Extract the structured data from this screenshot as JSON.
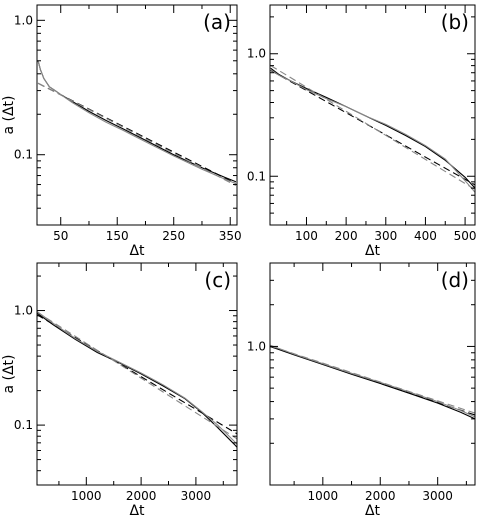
{
  "chart_data": [
    {
      "type": "line",
      "panel_label": "(a)",
      "xlabel": "Δt",
      "ylabel": "a (Δt)",
      "xlim": [
        8,
        362
      ],
      "ylim": [
        0.03,
        1.3
      ],
      "yscale": "log",
      "xticks": [
        50,
        150,
        250,
        350
      ],
      "yticks": [
        0.1,
        1.0
      ],
      "ytick_labels": [
        "0.1",
        "1.0"
      ],
      "grid": false,
      "series": [
        {
          "role": "data",
          "color": "#000000",
          "style": "solid",
          "x": [
            10,
            14,
            20,
            30,
            40,
            50,
            70,
            100,
            130,
            160,
            200,
            250,
            300,
            340,
            360
          ],
          "y": [
            0.5,
            0.43,
            0.37,
            0.32,
            0.3,
            0.28,
            0.25,
            0.21,
            0.18,
            0.156,
            0.128,
            0.1,
            0.08,
            0.068,
            0.063
          ]
        },
        {
          "role": "fit",
          "color": "#000000",
          "style": "dashed",
          "x": [
            10,
            360
          ],
          "y": [
            0.34,
            0.061
          ]
        },
        {
          "role": "data",
          "color": "#888888",
          "style": "solid",
          "x": [
            10,
            14,
            20,
            30,
            40,
            50,
            70,
            100,
            130,
            160,
            200,
            250,
            300,
            340,
            360
          ],
          "y": [
            0.5,
            0.43,
            0.37,
            0.32,
            0.3,
            0.28,
            0.245,
            0.205,
            0.175,
            0.152,
            0.125,
            0.098,
            0.078,
            0.066,
            0.061
          ]
        },
        {
          "role": "fit",
          "color": "#888888",
          "style": "dashed",
          "x": [
            10,
            360
          ],
          "y": [
            0.34,
            0.059
          ]
        }
      ]
    },
    {
      "type": "line",
      "panel_label": "(b)",
      "xlabel": "Δt",
      "ylabel": "",
      "xlim": [
        8,
        525
      ],
      "ylim": [
        0.04,
        2.5
      ],
      "yscale": "log",
      "xticks": [
        100,
        200,
        300,
        400,
        500
      ],
      "yticks": [
        0.1,
        1.0
      ],
      "ytick_labels": [
        "0.1",
        "1.0"
      ],
      "grid": false,
      "series": [
        {
          "role": "data",
          "color": "#000000",
          "style": "solid",
          "x": [
            10,
            30,
            60,
            100,
            150,
            200,
            250,
            300,
            350,
            400,
            450,
            500,
            525
          ],
          "y": [
            0.76,
            0.68,
            0.6,
            0.52,
            0.44,
            0.37,
            0.31,
            0.26,
            0.215,
            0.175,
            0.135,
            0.098,
            0.08
          ]
        },
        {
          "role": "fit",
          "color": "#000000",
          "style": "dashed",
          "x": [
            10,
            525
          ],
          "y": [
            0.73,
            0.085
          ]
        },
        {
          "role": "data",
          "color": "#888888",
          "style": "solid",
          "x": [
            10,
            30,
            60,
            100,
            150,
            200,
            250,
            300,
            350,
            400,
            450,
            500,
            525
          ],
          "y": [
            0.74,
            0.67,
            0.6,
            0.51,
            0.43,
            0.37,
            0.31,
            0.265,
            0.22,
            0.178,
            0.138,
            0.092,
            0.074
          ]
        },
        {
          "role": "fit",
          "color": "#888888",
          "style": "dashed",
          "x": [
            10,
            525
          ],
          "y": [
            0.8,
            0.078
          ]
        }
      ]
    },
    {
      "type": "line",
      "panel_label": "(c)",
      "xlabel": "Δt",
      "ylabel": "a (Δt)",
      "xlim": [
        100,
        3750
      ],
      "ylim": [
        0.03,
        2.6
      ],
      "yscale": "log",
      "xticks": [
        1000,
        2000,
        3000
      ],
      "yticks": [
        0.1,
        1.0
      ],
      "ytick_labels": [
        "0.1",
        "1.0"
      ],
      "grid": false,
      "series": [
        {
          "role": "data",
          "color": "#000000",
          "style": "solid",
          "x": [
            100,
            400,
            800,
            1200,
            1600,
            2000,
            2400,
            2800,
            3100,
            3400,
            3700,
            3750
          ],
          "y": [
            0.95,
            0.75,
            0.56,
            0.43,
            0.35,
            0.28,
            0.22,
            0.17,
            0.13,
            0.095,
            0.068,
            0.064
          ]
        },
        {
          "role": "fit",
          "color": "#000000",
          "style": "dashed",
          "x": [
            100,
            3750
          ],
          "y": [
            0.92,
            0.084
          ]
        },
        {
          "role": "data",
          "color": "#888888",
          "style": "solid",
          "x": [
            100,
            400,
            800,
            1200,
            1600,
            2000,
            2400,
            2800,
            3100,
            3400,
            3700,
            3750
          ],
          "y": [
            0.98,
            0.77,
            0.57,
            0.44,
            0.355,
            0.285,
            0.225,
            0.172,
            0.132,
            0.1,
            0.072,
            0.068
          ]
        },
        {
          "role": "fit",
          "color": "#888888",
          "style": "dashed",
          "x": [
            100,
            3750
          ],
          "y": [
            0.97,
            0.076
          ]
        }
      ]
    },
    {
      "type": "line",
      "panel_label": "(d)",
      "xlabel": "Δt",
      "ylabel": "",
      "xlim": [
        80,
        3650
      ],
      "ylim": [
        0.1,
        4.0
      ],
      "yscale": "log",
      "xticks": [
        1000,
        2000,
        3000
      ],
      "yticks": [
        1.0
      ],
      "ytick_labels": [
        "1.0"
      ],
      "grid": false,
      "series": [
        {
          "role": "data",
          "color": "#000000",
          "style": "solid",
          "x": [
            80,
            500,
            1000,
            1500,
            2000,
            2500,
            3000,
            3400,
            3650
          ],
          "y": [
            1.0,
            0.87,
            0.74,
            0.63,
            0.54,
            0.46,
            0.39,
            0.335,
            0.3
          ]
        },
        {
          "role": "fit",
          "color": "#000000",
          "style": "dashed",
          "x": [
            80,
            3650
          ],
          "y": [
            1.0,
            0.32
          ]
        },
        {
          "role": "data",
          "color": "#888888",
          "style": "solid",
          "x": [
            80,
            500,
            1000,
            1500,
            2000,
            2500,
            3000,
            3400,
            3650
          ],
          "y": [
            1.02,
            0.88,
            0.75,
            0.64,
            0.55,
            0.47,
            0.4,
            0.345,
            0.31
          ]
        },
        {
          "role": "fit",
          "color": "#888888",
          "style": "dashed",
          "x": [
            80,
            3650
          ],
          "y": [
            1.01,
            0.33
          ]
        }
      ]
    }
  ]
}
